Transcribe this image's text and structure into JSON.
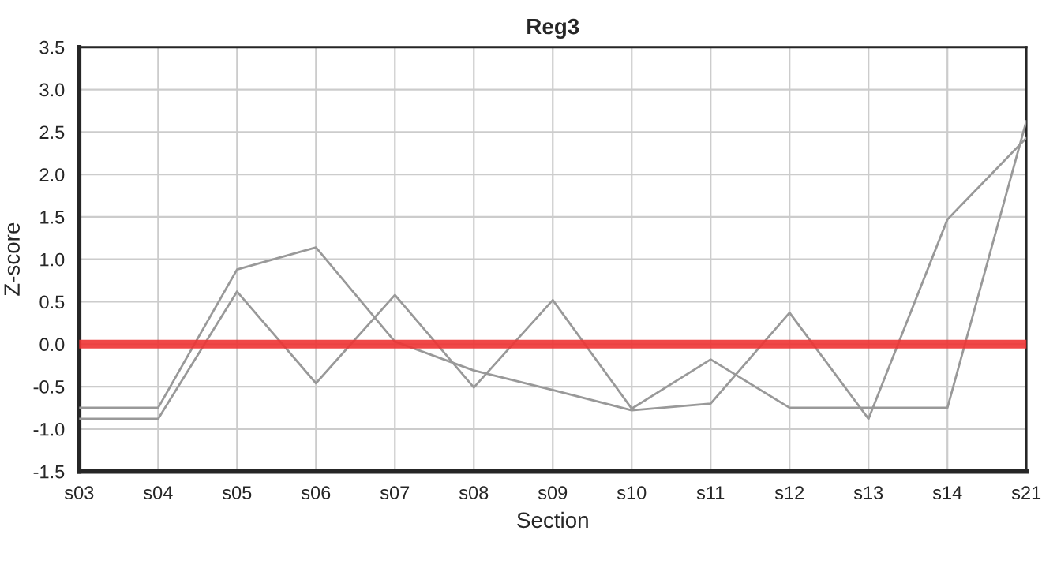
{
  "chart_data": {
    "type": "line",
    "title": "Reg3",
    "xlabel": "Section",
    "ylabel": "Z-score",
    "categories": [
      "s03",
      "s04",
      "s05",
      "s06",
      "s07",
      "s08",
      "s09",
      "s10",
      "s11",
      "s12",
      "s13",
      "s14",
      "s21"
    ],
    "series": [
      {
        "color": "#999999",
        "values": [
          -0.75,
          -0.75,
          0.88,
          1.14,
          0.03,
          -0.31,
          -0.54,
          -0.78,
          -0.7,
          0.37,
          -0.88,
          1.47,
          2.43
        ]
      },
      {
        "color": "#999999",
        "values": [
          -0.88,
          -0.88,
          0.62,
          -0.46,
          0.58,
          -0.51,
          0.52,
          -0.76,
          -0.18,
          -0.75,
          -0.75,
          -0.75,
          2.63
        ]
      }
    ],
    "ylim": [
      -1.5,
      3.5
    ],
    "yticks": [
      {
        "value": -1.5,
        "label": "-1.5"
      },
      {
        "value": -1.0,
        "label": "-1.0"
      },
      {
        "value": -0.5,
        "label": "-0.5"
      },
      {
        "value": 0,
        "label": "0.0"
      },
      {
        "value": 0.5,
        "label": "0.5"
      },
      {
        "value": 1.0,
        "label": "1.0"
      },
      {
        "value": 1.5,
        "label": "1.5"
      },
      {
        "value": 2.0,
        "label": "2.0"
      },
      {
        "value": 2.5,
        "label": "2.5"
      },
      {
        "value": 3.0,
        "label": "3.0"
      },
      {
        "value": 3.5,
        "label": "3.5"
      }
    ],
    "ref_lines": [
      {
        "axis": "y",
        "value": 0,
        "color": "#ee3333"
      }
    ],
    "grid": true,
    "legend": false,
    "marker": "none",
    "line_style": "solid"
  }
}
